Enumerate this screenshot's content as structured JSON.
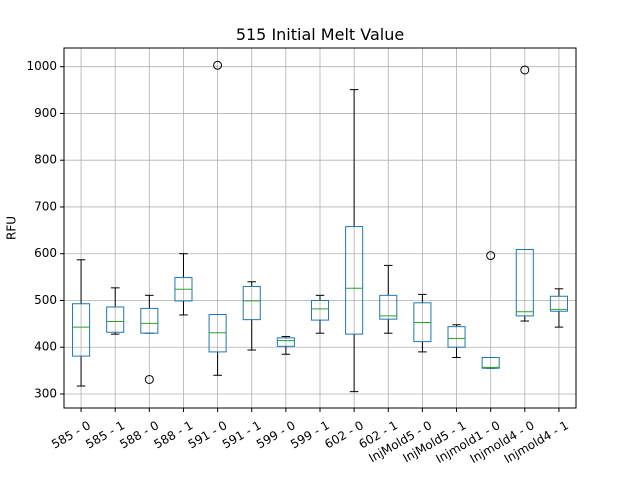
{
  "chart_data": {
    "type": "box",
    "title": "515 Initial Melt Value",
    "ylabel": "RFU",
    "xlabel": "",
    "ylim": [
      270,
      1040
    ],
    "yticks": [
      300,
      400,
      500,
      600,
      700,
      800,
      900,
      1000
    ],
    "grid": true,
    "colors": {
      "box": "#1f77b4",
      "median": "#2ca02c",
      "whisker": "#000000",
      "grid": "#b0b0b0",
      "frame": "#000000"
    },
    "categories": [
      "585 - 0",
      "585 - 1",
      "588 - 0",
      "588 - 1",
      "591 - 0",
      "591 - 1",
      "599 - 0",
      "599 - 1",
      "602 - 0",
      "602 - 1",
      "InjMold5 - 0",
      "InjMold5 - 1",
      "Injmold1 - 0",
      "Injmold4 - 0",
      "Injmold4 - 1"
    ],
    "boxes": [
      {
        "low": 317,
        "q1": 381,
        "median": 443,
        "q3": 493,
        "high": 587,
        "outliers": []
      },
      {
        "low": 428,
        "q1": 432,
        "median": 455,
        "q3": 486,
        "high": 527,
        "outliers": []
      },
      {
        "low": 430,
        "q1": 430,
        "median": 451,
        "q3": 483,
        "high": 511,
        "outliers": [
          331
        ]
      },
      {
        "low": 469,
        "q1": 499,
        "median": 524,
        "q3": 549,
        "high": 600,
        "outliers": []
      },
      {
        "low": 340,
        "q1": 390,
        "median": 431,
        "q3": 470,
        "high": 470,
        "outliers": [
          1003
        ]
      },
      {
        "low": 394,
        "q1": 459,
        "median": 499,
        "q3": 530,
        "high": 540,
        "outliers": []
      },
      {
        "low": 385,
        "q1": 402,
        "median": 414,
        "q3": 420,
        "high": 423,
        "outliers": []
      },
      {
        "low": 430,
        "q1": 458,
        "median": 482,
        "q3": 500,
        "high": 511,
        "outliers": []
      },
      {
        "low": 305,
        "q1": 428,
        "median": 526,
        "q3": 658,
        "high": 951,
        "outliers": []
      },
      {
        "low": 430,
        "q1": 460,
        "median": 467,
        "q3": 511,
        "high": 575,
        "outliers": []
      },
      {
        "low": 390,
        "q1": 412,
        "median": 453,
        "q3": 495,
        "high": 513,
        "outliers": []
      },
      {
        "low": 378,
        "q1": 400,
        "median": 419,
        "q3": 444,
        "high": 448,
        "outliers": []
      },
      {
        "low": 355,
        "q1": 355,
        "median": 357,
        "q3": 378,
        "high": 378,
        "outliers": [
          596
        ]
      },
      {
        "low": 456,
        "q1": 467,
        "median": 476,
        "q3": 609,
        "high": 609,
        "outliers": [
          993
        ]
      },
      {
        "low": 443,
        "q1": 477,
        "median": 481,
        "q3": 509,
        "high": 525,
        "outliers": []
      }
    ]
  }
}
